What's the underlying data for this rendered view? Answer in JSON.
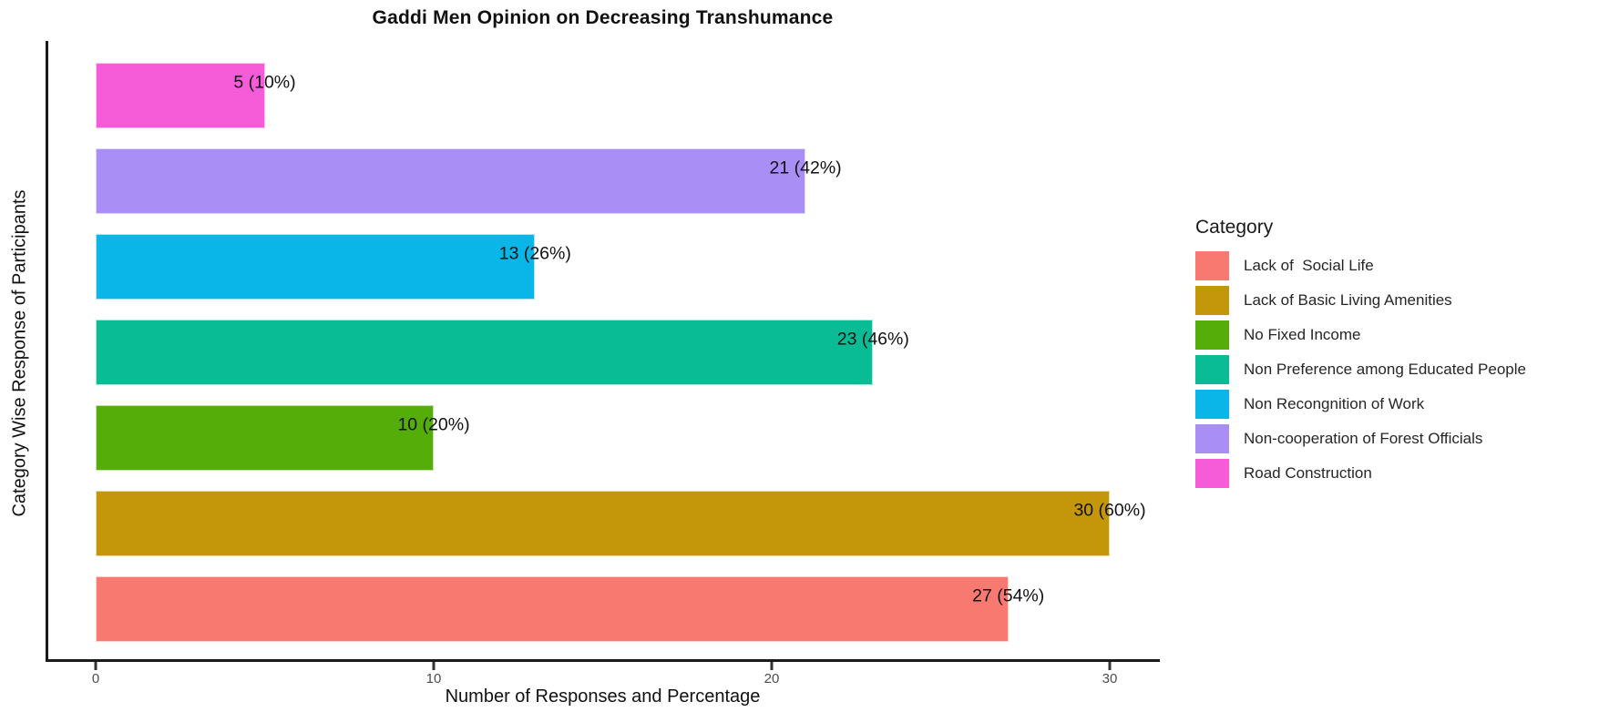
{
  "chart_data": {
    "type": "bar",
    "orientation": "horizontal",
    "title": "Gaddi Men Opinion on Decreasing Transhumance",
    "xlabel": "Number of Responses and Percentage",
    "ylabel": "Category Wise Response of Participants",
    "xlim": [
      0,
      31.5
    ],
    "xticks": [
      0,
      10,
      20,
      30
    ],
    "grid": false,
    "legend_title": "Category",
    "legend_position": "right",
    "bars_top_to_bottom": [
      {
        "category": "Road Construction",
        "value": 5,
        "percent": 10,
        "label": "5 (10%)",
        "color": "#F65CD8"
      },
      {
        "category": "Non-cooperation of Forest Officials",
        "value": 21,
        "percent": 42,
        "label": "21 (42%)",
        "color": "#A88EF5"
      },
      {
        "category": "Non Recongnition of Work",
        "value": 13,
        "percent": 26,
        "label": "13 (26%)",
        "color": "#0AB5E8"
      },
      {
        "category": "Non Preference among Educated People",
        "value": 23,
        "percent": 46,
        "label": "23 (46%)",
        "color": "#0ABC96"
      },
      {
        "category": "No Fixed Income",
        "value": 10,
        "percent": 20,
        "label": "10 (20%)",
        "color": "#54AD08"
      },
      {
        "category": "Lack of Basic Living Amenities",
        "value": 30,
        "percent": 60,
        "label": "30 (60%)",
        "color": "#C4970A"
      },
      {
        "category": "Lack of  Social Life",
        "value": 27,
        "percent": 54,
        "label": "27 (54%)",
        "color": "#F87970"
      }
    ],
    "legend_items_top_to_bottom": [
      {
        "label": "Lack of  Social Life",
        "color": "#F87970"
      },
      {
        "label": "Lack of Basic Living Amenities",
        "color": "#C4970A"
      },
      {
        "label": "No Fixed Income",
        "color": "#54AD08"
      },
      {
        "label": "Non Preference among Educated People",
        "color": "#0ABC96"
      },
      {
        "label": "Non Recongnition of Work",
        "color": "#0AB5E8"
      },
      {
        "label": "Non-cooperation of Forest Officials",
        "color": "#A88EF5"
      },
      {
        "label": "Road Construction",
        "color": "#F65CD8"
      }
    ]
  }
}
